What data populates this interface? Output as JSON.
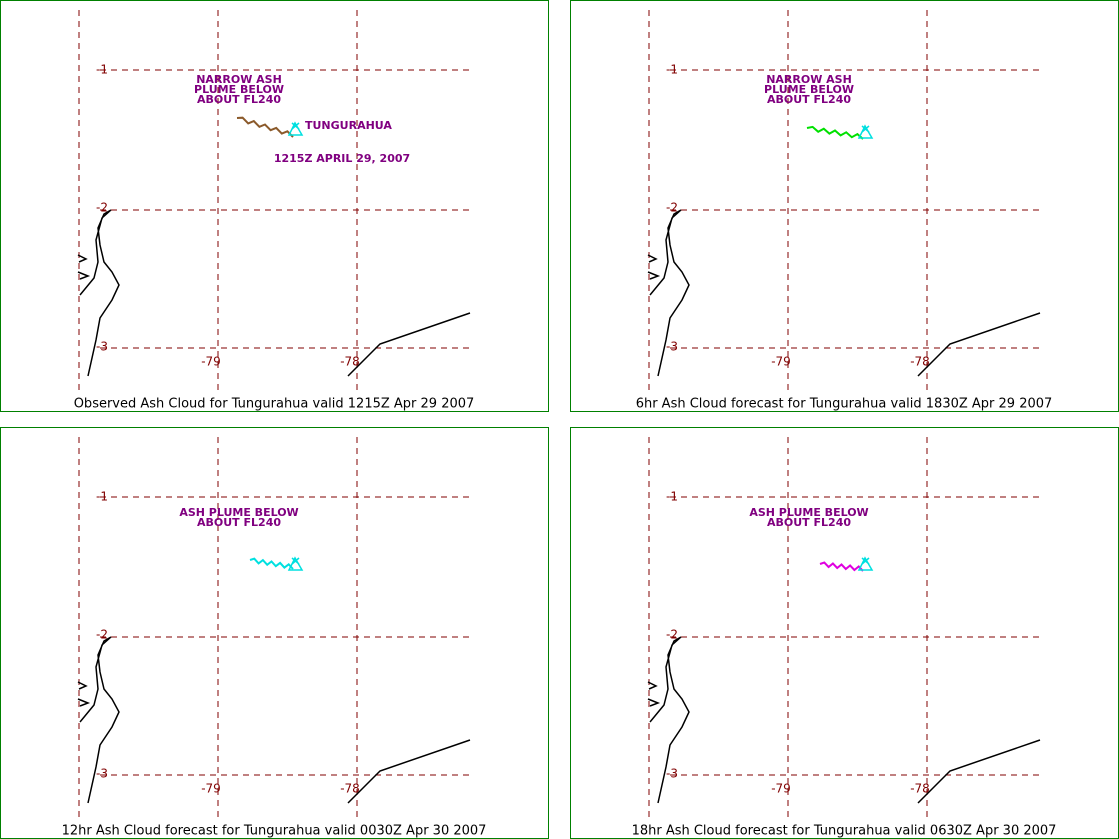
{
  "grid": {
    "lat_labels": [
      "-1",
      "-2",
      "-3"
    ],
    "lon_labels": [
      "-79",
      "-78"
    ]
  },
  "panels": [
    {
      "caption": "Observed Ash Cloud for Tungurahua valid 1215Z Apr 29 2007",
      "annotation": [
        "NARROW ASH",
        "PLUME BELOW",
        "ABOUT FL240"
      ],
      "volcano_label": "TUNGURAHUA",
      "time_label": "1215Z APRIL 29, 2007",
      "plume_color": "#8b5a2b"
    },
    {
      "caption": "6hr Ash Cloud forecast for Tungurahua valid 1830Z Apr 29 2007",
      "annotation": [
        "NARROW ASH",
        "PLUME BELOW",
        "ABOUT FL240"
      ],
      "plume_color": "#00e000"
    },
    {
      "caption": "12hr Ash Cloud forecast for Tungurahua valid 0030Z Apr 30 2007",
      "annotation": [
        "ASH PLUME BELOW",
        "ABOUT FL240"
      ],
      "plume_color": "#00e0e0"
    },
    {
      "caption": "18hr Ash Cloud forecast for Tungurahua valid 0630Z Apr 30 2007",
      "annotation": [
        "ASH PLUME BELOW",
        "ABOUT FL240"
      ],
      "plume_color": "#e000e0"
    }
  ]
}
